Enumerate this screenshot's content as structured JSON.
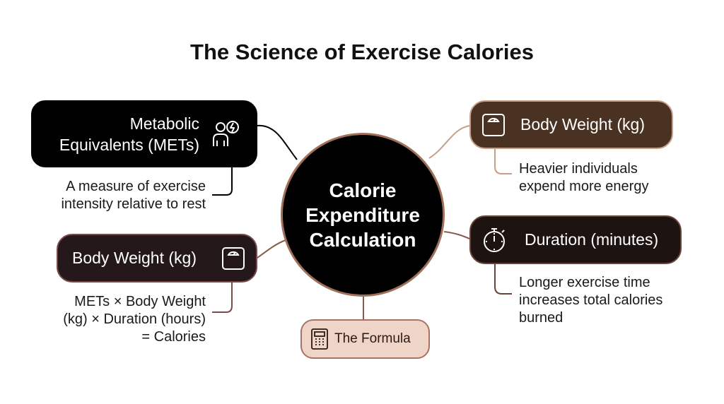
{
  "title": "The Science of Exercise Calories",
  "center": {
    "line1": "Calorie",
    "line2": "Expenditure",
    "line3": "Calculation"
  },
  "nodes": {
    "mets": {
      "label_line1": "Metabolic",
      "label_line2": "Equivalents (METs)",
      "description_line1": "A measure of exercise",
      "description_line2": "intensity relative to rest",
      "icon": "person-energy-icon"
    },
    "body_weight_right": {
      "label": "Body Weight (kg)",
      "description_line1": "Heavier individuals",
      "description_line2": "expend more energy",
      "icon": "scale-icon"
    },
    "duration": {
      "label": "Duration (minutes)",
      "description_line1": "Longer exercise time",
      "description_line2": "increases total calories",
      "description_line3": "burned",
      "icon": "stopwatch-icon"
    },
    "body_weight_left": {
      "label": "Body Weight (kg)",
      "description_line1": "METs × Body Weight",
      "description_line2": "(kg) × Duration (hours)",
      "description_line3": "= Calories",
      "icon": "scale-icon"
    },
    "formula": {
      "label": "The Formula",
      "icon": "calculator-icon"
    }
  },
  "colors": {
    "hub_fill": "#000000",
    "hub_border": "#a0705a",
    "mets_fill": "#000000",
    "body_weight_right_fill": "#4a3223",
    "duration_fill": "#1d1412",
    "body_weight_left_fill": "#24181a",
    "formula_fill": "#efd4c8",
    "connector_dark": "#000000",
    "connector_tan": "#c79f89",
    "connector_brown": "#8a5a4a"
  }
}
